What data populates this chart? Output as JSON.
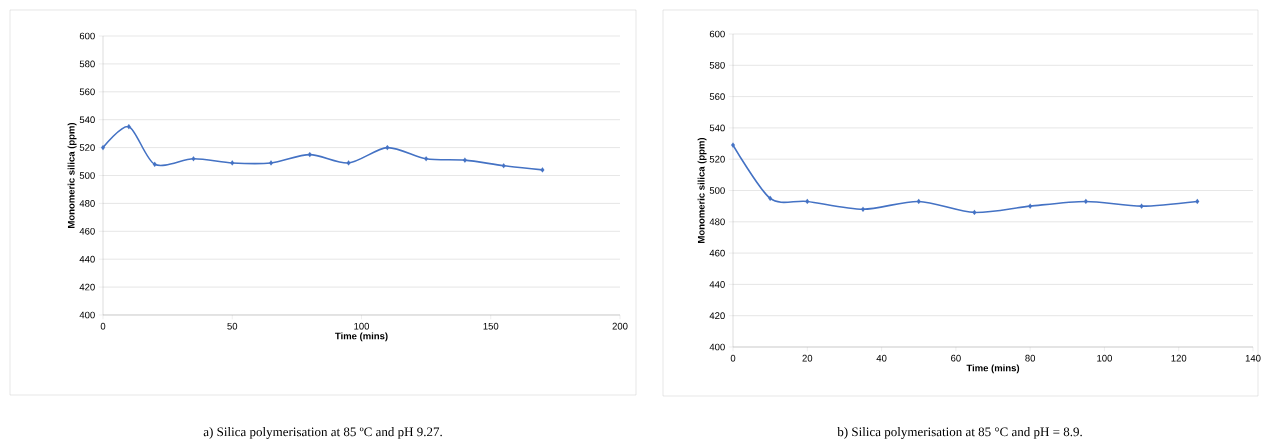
{
  "chart_data": [
    {
      "type": "line",
      "xlabel": "Time (mins)",
      "ylabel": "Monomeric silica (ppm)",
      "x": [
        0,
        10,
        20,
        35,
        50,
        65,
        80,
        95,
        110,
        125,
        140,
        155,
        170
      ],
      "values": [
        520,
        535,
        508,
        512,
        509,
        509,
        515,
        509,
        520,
        512,
        511,
        507,
        504
      ],
      "color": "#4472c4",
      "marker": "diamond",
      "grid": "y",
      "xlim": [
        0,
        200
      ],
      "xticks": [
        0,
        50,
        100,
        150,
        200
      ],
      "ylim": [
        400,
        600
      ],
      "yticks": [
        400,
        420,
        440,
        460,
        480,
        500,
        520,
        540,
        560,
        580,
        600
      ],
      "annotations": [
        "a) Silica polymerisation at 85 ºC and pH 9.27."
      ]
    },
    {
      "type": "line",
      "xlabel": "Time (mins)",
      "ylabel": "Monomeric silica (ppm)",
      "x": [
        0,
        10,
        20,
        35,
        50,
        65,
        80,
        95,
        110,
        125
      ],
      "values": [
        529,
        495,
        493,
        488,
        493,
        486,
        490,
        493,
        490,
        493
      ],
      "color": "#4472c4",
      "marker": "diamond",
      "grid": "y",
      "xlim": [
        0,
        140
      ],
      "xticks": [
        0,
        20,
        40,
        60,
        80,
        100,
        120,
        140
      ],
      "ylim": [
        400,
        600
      ],
      "yticks": [
        400,
        420,
        440,
        460,
        480,
        500,
        520,
        540,
        560,
        580,
        600
      ],
      "annotations": [
        "b) Silica polymerisation at 85 °C and pH = 8.9."
      ]
    }
  ]
}
